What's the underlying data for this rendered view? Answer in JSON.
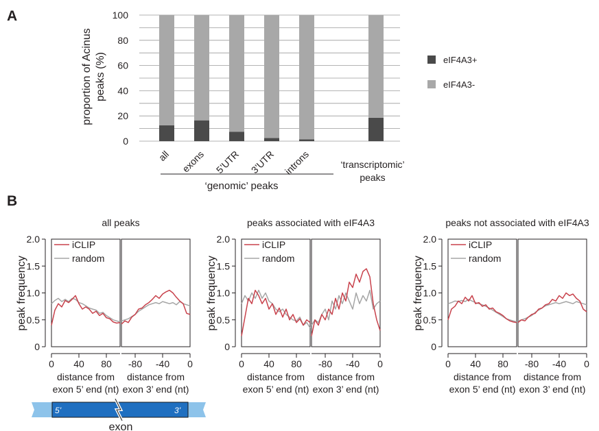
{
  "panel_labels": {
    "a": "A",
    "b": "B"
  },
  "colors": {
    "pos": "#4a4a4a",
    "neg": "#a8a8a8",
    "iclip": "#c8414b",
    "random": "#a5a5a5",
    "exon_dark": "#1f6fc0",
    "exon_light": "#8dc3ea"
  },
  "panel_a": {
    "ylabel_line1": "proportion of Acinus",
    "ylabel_line2": "peaks (%)",
    "group_label": "‘genomic’ peaks",
    "extra_label_line1": "‘transcriptomic’",
    "extra_label_line2": "peaks",
    "legend": [
      "eIF4A3+",
      "eIF4A3-"
    ]
  },
  "panel_b": {
    "ylabel": "peak frequency",
    "xlabel_left": [
      "distance from",
      "exon 5’ end (nt)"
    ],
    "xlabel_right": [
      "distance from",
      "exon 3’ end (nt)"
    ],
    "legend": [
      "iCLIP",
      "random"
    ],
    "diagram": {
      "left_mark": "5’",
      "right_mark": "3’",
      "caption": "exon"
    }
  },
  "chart_data": [
    {
      "type": "bar",
      "stacked": true,
      "categories": [
        "all",
        "exons",
        "5’UTR",
        "3’UTR",
        "introns",
        "",
        "‘transcriptomic’"
      ],
      "category_labels": [
        "all",
        "exons",
        "5’UTR",
        "3’UTR",
        "introns",
        "",
        ""
      ],
      "series": [
        {
          "name": "eIF4A3+",
          "values": [
            12.5,
            16.5,
            7.5,
            2.5,
            1.5,
            null,
            18.5
          ]
        },
        {
          "name": "eIF4A3-",
          "values": [
            87.5,
            83.5,
            92.5,
            97.5,
            98.5,
            null,
            81.5
          ]
        }
      ],
      "yticks": [
        0,
        20,
        40,
        60,
        80,
        100
      ],
      "ylim": [
        0,
        100
      ],
      "grid": true,
      "legend_position": "right"
    },
    {
      "type": "line",
      "title": "all peaks",
      "ylim": [
        0,
        2
      ],
      "yticks": [
        "0",
        "0.5",
        "1.0",
        "1.5",
        "2.0"
      ],
      "left": {
        "xlim": [
          0,
          100
        ],
        "xticks": [
          0,
          40,
          80
        ],
        "iclip": {
          "x": [
            0,
            5,
            10,
            15,
            20,
            25,
            30,
            35,
            40,
            45,
            50,
            55,
            60,
            65,
            70,
            75,
            80,
            85,
            90,
            95,
            100
          ],
          "y": [
            0.4,
            0.68,
            0.8,
            0.74,
            0.86,
            0.82,
            0.88,
            0.95,
            0.8,
            0.7,
            0.74,
            0.7,
            0.62,
            0.66,
            0.58,
            0.62,
            0.54,
            0.52,
            0.46,
            0.44,
            0.45
          ]
        },
        "random": {
          "x": [
            0,
            5,
            10,
            15,
            20,
            25,
            30,
            35,
            40,
            45,
            50,
            55,
            60,
            65,
            70,
            75,
            80,
            85,
            90,
            95,
            100
          ],
          "y": [
            0.8,
            0.86,
            0.9,
            0.84,
            0.88,
            0.84,
            0.9,
            0.88,
            0.82,
            0.8,
            0.76,
            0.72,
            0.7,
            0.68,
            0.62,
            0.64,
            0.58,
            0.54,
            0.5,
            0.48,
            0.46
          ]
        }
      },
      "right": {
        "xlim": [
          -100,
          0
        ],
        "xticks": [
          -80,
          -40,
          0
        ],
        "iclip": {
          "x": [
            -100,
            -95,
            -90,
            -85,
            -80,
            -75,
            -70,
            -65,
            -60,
            -55,
            -50,
            -45,
            -40,
            -35,
            -30,
            -25,
            -20,
            -15,
            -10,
            -5,
            0
          ],
          "y": [
            0.42,
            0.48,
            0.45,
            0.55,
            0.6,
            0.7,
            0.72,
            0.78,
            0.82,
            0.88,
            0.95,
            0.9,
            0.98,
            1.02,
            1.05,
            1.0,
            0.92,
            0.85,
            0.8,
            0.62,
            0.6
          ]
        },
        "random": {
          "x": [
            -100,
            -95,
            -90,
            -85,
            -80,
            -75,
            -70,
            -65,
            -60,
            -55,
            -50,
            -45,
            -40,
            -35,
            -30,
            -25,
            -20,
            -15,
            -10,
            -5,
            0
          ],
          "y": [
            0.48,
            0.5,
            0.52,
            0.56,
            0.6,
            0.66,
            0.7,
            0.74,
            0.78,
            0.8,
            0.82,
            0.8,
            0.84,
            0.82,
            0.8,
            0.82,
            0.78,
            0.84,
            0.8,
            0.78,
            0.76
          ]
        }
      }
    },
    {
      "type": "line",
      "title": "peaks associated with eIF4A3",
      "ylim": [
        0,
        2
      ],
      "yticks": [
        "0",
        "0.5",
        "1.0",
        "1.5",
        "2.0"
      ],
      "left": {
        "xlim": [
          0,
          100
        ],
        "xticks": [
          0,
          40,
          80
        ],
        "iclip": {
          "x": [
            0,
            5,
            10,
            15,
            20,
            25,
            30,
            35,
            40,
            45,
            50,
            55,
            60,
            65,
            70,
            75,
            80,
            85,
            90,
            95,
            100
          ],
          "y": [
            0.2,
            0.55,
            0.9,
            0.8,
            1.05,
            0.95,
            0.8,
            0.9,
            0.7,
            0.8,
            0.6,
            0.72,
            0.55,
            0.7,
            0.5,
            0.6,
            0.45,
            0.52,
            0.4,
            0.5,
            0.45
          ]
        },
        "random": {
          "x": [
            0,
            5,
            10,
            15,
            20,
            25,
            30,
            35,
            40,
            45,
            50,
            55,
            60,
            65,
            70,
            75,
            80,
            85,
            90,
            95,
            100
          ],
          "y": [
            0.8,
            0.95,
            0.85,
            1.0,
            0.9,
            1.05,
            0.9,
            1.0,
            0.85,
            0.8,
            0.7,
            0.65,
            0.7,
            0.6,
            0.55,
            0.5,
            0.48,
            0.55,
            0.4,
            0.45,
            0.35
          ]
        }
      },
      "right": {
        "xlim": [
          -100,
          0
        ],
        "xticks": [
          -80,
          -40,
          0
        ],
        "iclip": {
          "x": [
            -100,
            -95,
            -90,
            -85,
            -80,
            -75,
            -70,
            -65,
            -60,
            -55,
            -50,
            -45,
            -40,
            -35,
            -30,
            -25,
            -20,
            -15,
            -10,
            -5,
            0
          ],
          "y": [
            0.2,
            0.5,
            0.4,
            0.6,
            0.5,
            0.7,
            0.6,
            0.9,
            0.7,
            1.0,
            0.85,
            1.2,
            1.1,
            1.35,
            1.2,
            1.4,
            1.45,
            1.3,
            0.8,
            0.5,
            0.3
          ]
        },
        "random": {
          "x": [
            -100,
            -95,
            -90,
            -85,
            -80,
            -75,
            -70,
            -65,
            -60,
            -55,
            -50,
            -45,
            -40,
            -35,
            -30,
            -25,
            -20,
            -15,
            -10,
            -5,
            0
          ],
          "y": [
            0.4,
            0.5,
            0.45,
            0.6,
            0.7,
            0.5,
            0.85,
            0.7,
            0.95,
            0.8,
            1.0,
            0.85,
            0.7,
            1.0,
            0.8,
            0.95,
            0.85,
            1.05,
            0.7,
            0.8,
            0.85
          ]
        }
      }
    },
    {
      "type": "line",
      "title": "peaks not associated with eIF4A3",
      "ylim": [
        0,
        2
      ],
      "yticks": [
        "0",
        "0.5",
        "1.0",
        "1.5",
        "2.0"
      ],
      "left": {
        "xlim": [
          0,
          100
        ],
        "xticks": [
          0,
          40,
          80
        ],
        "iclip": {
          "x": [
            0,
            5,
            10,
            15,
            20,
            25,
            30,
            35,
            40,
            45,
            50,
            55,
            60,
            65,
            70,
            75,
            80,
            85,
            90,
            95,
            100
          ],
          "y": [
            0.5,
            0.7,
            0.75,
            0.85,
            0.8,
            0.92,
            0.85,
            0.95,
            0.8,
            0.82,
            0.75,
            0.78,
            0.7,
            0.72,
            0.65,
            0.62,
            0.58,
            0.52,
            0.48,
            0.46,
            0.45
          ]
        },
        "random": {
          "x": [
            0,
            5,
            10,
            15,
            20,
            25,
            30,
            35,
            40,
            45,
            50,
            55,
            60,
            65,
            70,
            75,
            80,
            85,
            90,
            95,
            100
          ],
          "y": [
            0.8,
            0.82,
            0.85,
            0.84,
            0.86,
            0.84,
            0.88,
            0.85,
            0.82,
            0.8,
            0.78,
            0.75,
            0.72,
            0.68,
            0.64,
            0.6,
            0.56,
            0.52,
            0.5,
            0.48,
            0.46
          ]
        }
      },
      "right": {
        "xlim": [
          -100,
          0
        ],
        "xticks": [
          -80,
          -40,
          0
        ],
        "iclip": {
          "x": [
            -100,
            -95,
            -90,
            -85,
            -80,
            -75,
            -70,
            -65,
            -60,
            -55,
            -50,
            -45,
            -40,
            -35,
            -30,
            -25,
            -20,
            -15,
            -10,
            -5,
            0
          ],
          "y": [
            0.45,
            0.5,
            0.48,
            0.55,
            0.6,
            0.62,
            0.7,
            0.72,
            0.78,
            0.8,
            0.88,
            0.85,
            0.95,
            0.9,
            1.0,
            0.95,
            0.98,
            0.9,
            0.85,
            0.7,
            0.65
          ]
        },
        "random": {
          "x": [
            -100,
            -95,
            -90,
            -85,
            -80,
            -75,
            -70,
            -65,
            -60,
            -55,
            -50,
            -45,
            -40,
            -35,
            -30,
            -25,
            -20,
            -15,
            -10,
            -5,
            0
          ],
          "y": [
            0.48,
            0.5,
            0.52,
            0.55,
            0.58,
            0.64,
            0.68,
            0.72,
            0.76,
            0.78,
            0.8,
            0.82,
            0.8,
            0.82,
            0.84,
            0.82,
            0.8,
            0.84,
            0.82,
            0.8,
            0.78
          ]
        }
      }
    }
  ]
}
